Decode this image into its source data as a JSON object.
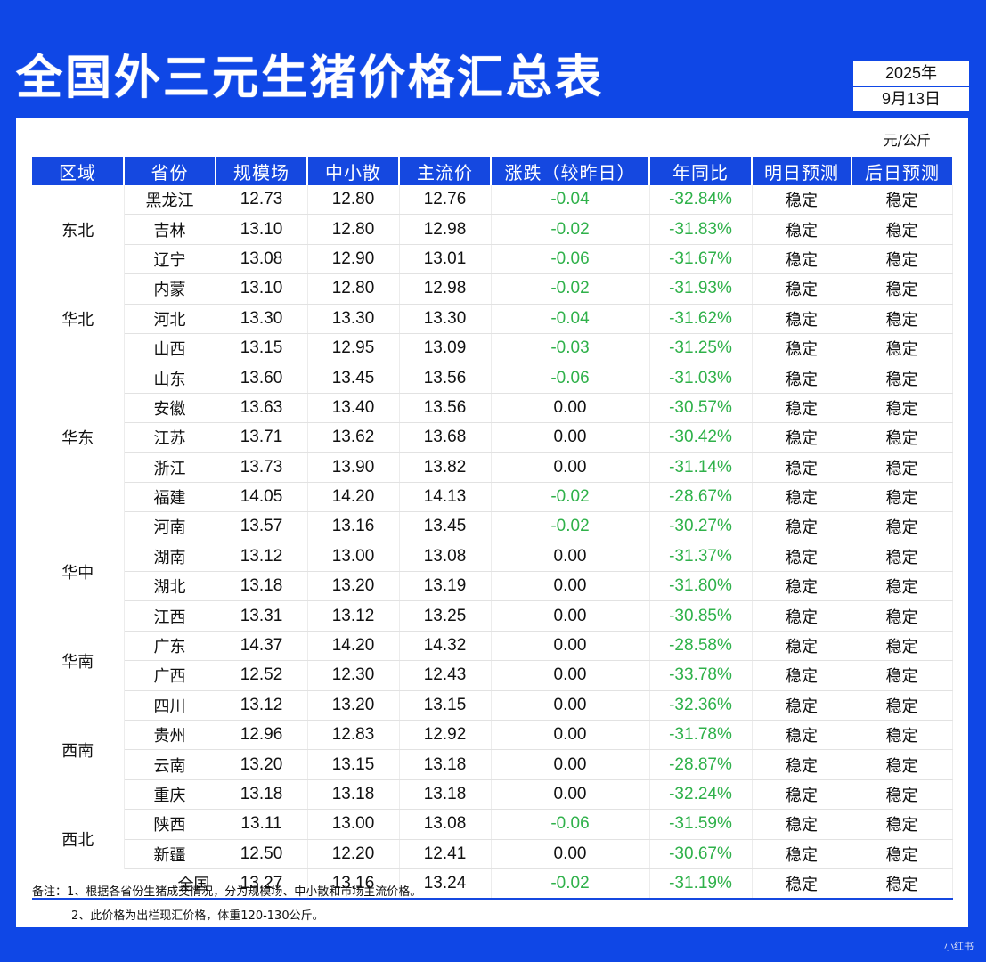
{
  "title": "全国外三元生猪价格汇总表",
  "date": {
    "year": "2025年",
    "day": "9月13日"
  },
  "unit": "元/公斤",
  "headers": [
    "区域",
    "省份",
    "规模场",
    "中小散",
    "主流价",
    "涨跌（较昨日）",
    "年同比",
    "明日预测",
    "后日预测"
  ],
  "rows": [
    {
      "region": "东北",
      "span": 3,
      "province": "黑龙江",
      "large": "12.73",
      "small": "12.80",
      "main": "12.76",
      "change": "-0.04",
      "yoy": "-32.84%",
      "tomorrow": "稳定",
      "after": "稳定"
    },
    {
      "province": "吉林",
      "large": "13.10",
      "small": "12.80",
      "main": "12.98",
      "change": "-0.02",
      "yoy": "-31.83%",
      "tomorrow": "稳定",
      "after": "稳定"
    },
    {
      "province": "辽宁",
      "large": "13.08",
      "small": "12.90",
      "main": "13.01",
      "change": "-0.06",
      "yoy": "-31.67%",
      "tomorrow": "稳定",
      "after": "稳定"
    },
    {
      "region": "华北",
      "span": 3,
      "province": "内蒙",
      "large": "13.10",
      "small": "12.80",
      "main": "12.98",
      "change": "-0.02",
      "yoy": "-31.93%",
      "tomorrow": "稳定",
      "after": "稳定"
    },
    {
      "province": "河北",
      "large": "13.30",
      "small": "13.30",
      "main": "13.30",
      "change": "-0.04",
      "yoy": "-31.62%",
      "tomorrow": "稳定",
      "after": "稳定"
    },
    {
      "province": "山西",
      "large": "13.15",
      "small": "12.95",
      "main": "13.09",
      "change": "-0.03",
      "yoy": "-31.25%",
      "tomorrow": "稳定",
      "after": "稳定"
    },
    {
      "region": "华东",
      "span": 5,
      "province": "山东",
      "large": "13.60",
      "small": "13.45",
      "main": "13.56",
      "change": "-0.06",
      "yoy": "-31.03%",
      "tomorrow": "稳定",
      "after": "稳定"
    },
    {
      "province": "安徽",
      "large": "13.63",
      "small": "13.40",
      "main": "13.56",
      "change": "0.00",
      "yoy": "-30.57%",
      "tomorrow": "稳定",
      "after": "稳定"
    },
    {
      "province": "江苏",
      "large": "13.71",
      "small": "13.62",
      "main": "13.68",
      "change": "0.00",
      "yoy": "-30.42%",
      "tomorrow": "稳定",
      "after": "稳定"
    },
    {
      "province": "浙江",
      "large": "13.73",
      "small": "13.90",
      "main": "13.82",
      "change": "0.00",
      "yoy": "-31.14%",
      "tomorrow": "稳定",
      "after": "稳定"
    },
    {
      "province": "福建",
      "large": "14.05",
      "small": "14.20",
      "main": "14.13",
      "change": "-0.02",
      "yoy": "-28.67%",
      "tomorrow": "稳定",
      "after": "稳定"
    },
    {
      "region": "华中",
      "span": 4,
      "province": "河南",
      "large": "13.57",
      "small": "13.16",
      "main": "13.45",
      "change": "-0.02",
      "yoy": "-30.27%",
      "tomorrow": "稳定",
      "after": "稳定"
    },
    {
      "province": "湖南",
      "large": "13.12",
      "small": "13.00",
      "main": "13.08",
      "change": "0.00",
      "yoy": "-31.37%",
      "tomorrow": "稳定",
      "after": "稳定"
    },
    {
      "province": "湖北",
      "large": "13.18",
      "small": "13.20",
      "main": "13.19",
      "change": "0.00",
      "yoy": "-31.80%",
      "tomorrow": "稳定",
      "after": "稳定"
    },
    {
      "province": "江西",
      "large": "13.31",
      "small": "13.12",
      "main": "13.25",
      "change": "0.00",
      "yoy": "-30.85%",
      "tomorrow": "稳定",
      "after": "稳定"
    },
    {
      "region": "华南",
      "span": 2,
      "province": "广东",
      "large": "14.37",
      "small": "14.20",
      "main": "14.32",
      "change": "0.00",
      "yoy": "-28.58%",
      "tomorrow": "稳定",
      "after": "稳定"
    },
    {
      "province": "广西",
      "large": "12.52",
      "small": "12.30",
      "main": "12.43",
      "change": "0.00",
      "yoy": "-33.78%",
      "tomorrow": "稳定",
      "after": "稳定"
    },
    {
      "region": "西南",
      "span": 4,
      "province": "四川",
      "large": "13.12",
      "small": "13.20",
      "main": "13.15",
      "change": "0.00",
      "yoy": "-32.36%",
      "tomorrow": "稳定",
      "after": "稳定"
    },
    {
      "province": "贵州",
      "large": "12.96",
      "small": "12.83",
      "main": "12.92",
      "change": "0.00",
      "yoy": "-31.78%",
      "tomorrow": "稳定",
      "after": "稳定"
    },
    {
      "province": "云南",
      "large": "13.20",
      "small": "13.15",
      "main": "13.18",
      "change": "0.00",
      "yoy": "-28.87%",
      "tomorrow": "稳定",
      "after": "稳定"
    },
    {
      "province": "重庆",
      "large": "13.18",
      "small": "13.18",
      "main": "13.18",
      "change": "0.00",
      "yoy": "-32.24%",
      "tomorrow": "稳定",
      "after": "稳定"
    },
    {
      "region": "西北",
      "span": 2,
      "province": "陕西",
      "large": "13.11",
      "small": "13.00",
      "main": "13.08",
      "change": "-0.06",
      "yoy": "-31.59%",
      "tomorrow": "稳定",
      "after": "稳定"
    },
    {
      "province": "新疆",
      "large": "12.50",
      "small": "12.20",
      "main": "12.41",
      "change": "0.00",
      "yoy": "-30.67%",
      "tomorrow": "稳定",
      "after": "稳定"
    }
  ],
  "total": {
    "label": "全国",
    "large": "13.27",
    "small": "13.16",
    "main": "13.24",
    "change": "-0.02",
    "yoy": "-31.19%",
    "tomorrow": "稳定",
    "after": "稳定"
  },
  "notes": [
    "备注：1、根据各省份生猪成交情况，分为规模场、中小散和市场主流价格。",
    "2、此价格为出栏现汇价格，体重120-130公斤。"
  ],
  "watermark": "小红书"
}
